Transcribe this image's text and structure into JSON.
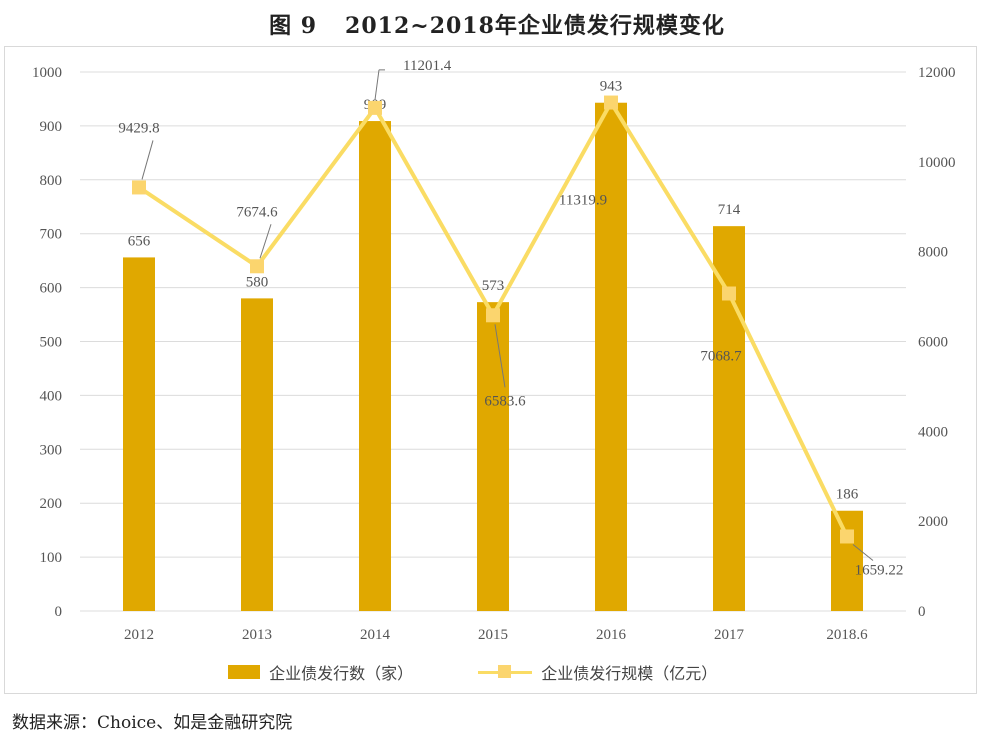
{
  "header": {
    "figure_number": "图 9",
    "title": "2012~2018年企业债发行规模变化"
  },
  "source": "数据来源：Choice、如是金融研究院",
  "colors": {
    "bar": "#e0a800",
    "line": "#fadc64",
    "marker": "#fbd56e",
    "grid": "#dcdcdc"
  },
  "chart_data": {
    "type": "bar",
    "categories": [
      "2012",
      "2013",
      "2014",
      "2015",
      "2016",
      "2017",
      "2018.6"
    ],
    "series": [
      {
        "name": "企业债发行数（家）",
        "type": "bar",
        "axis": "left",
        "values": [
          656,
          580,
          909,
          573,
          943,
          714,
          186
        ],
        "labels": [
          "656",
          "580",
          "909",
          "573",
          "943",
          "714",
          "186"
        ]
      },
      {
        "name": "企业债发行规模（亿元）",
        "type": "line",
        "axis": "right",
        "values": [
          9429.8,
          7674.6,
          11201.4,
          6583.6,
          11319.9,
          7068.7,
          1659.22
        ],
        "labels": [
          "9429.8",
          "7674.6",
          "11201.4",
          "6583.6",
          "11319.9",
          "7068.7",
          "1659.22"
        ]
      }
    ],
    "y_left": {
      "ylim": [
        0,
        1000
      ],
      "ticks": [
        "0",
        "100",
        "200",
        "300",
        "400",
        "500",
        "600",
        "700",
        "800",
        "900",
        "1000"
      ]
    },
    "y_right": {
      "ylim": [
        0,
        12000
      ],
      "ticks": [
        "0",
        "2000",
        "4000",
        "6000",
        "8000",
        "10000",
        "12000"
      ]
    },
    "grid": true,
    "legend_position": "bottom"
  }
}
